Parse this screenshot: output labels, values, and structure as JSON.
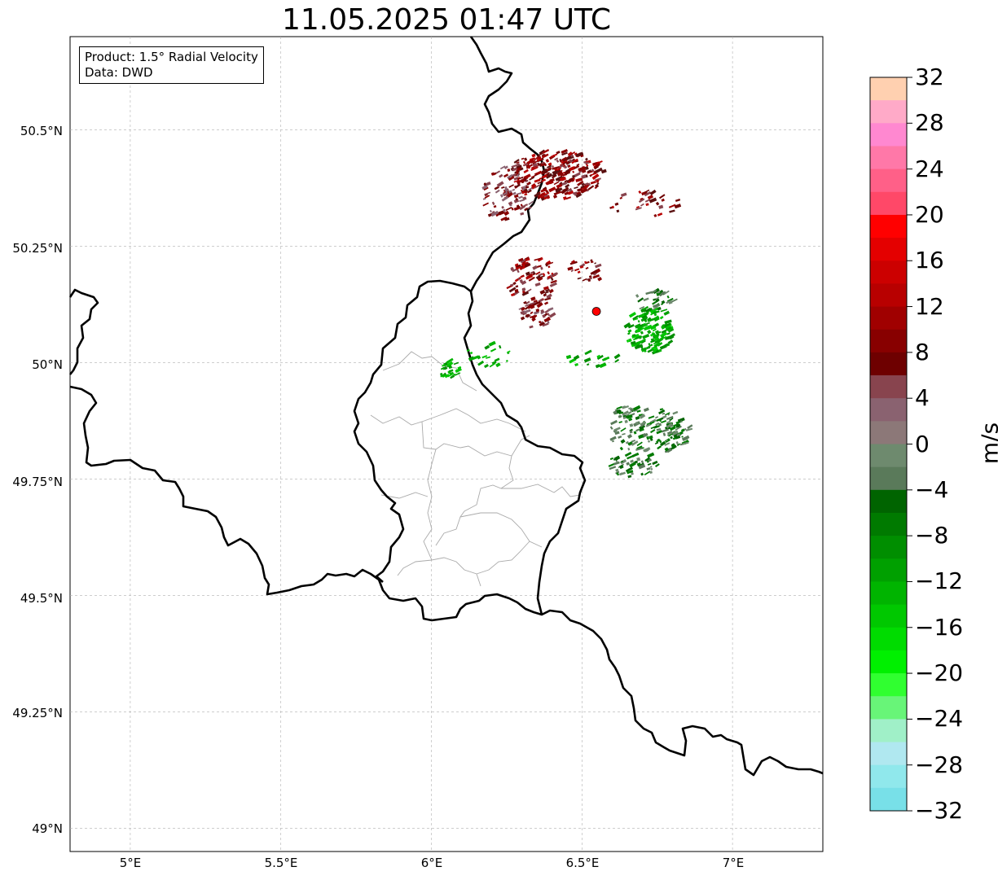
{
  "title": "11.05.2025 01:47 UTC",
  "info": {
    "product": "Product: 1.5° Radial Velocity",
    "data": "Data: DWD"
  },
  "map": {
    "lon_range": [
      4.8,
      7.3
    ],
    "lat_range": [
      48.95,
      50.7
    ],
    "lon_ticks": [
      "5°E",
      "5.5°E",
      "6°E",
      "6.5°E",
      "7°E"
    ],
    "lat_ticks": [
      "50.5°N",
      "50.25°N",
      "50°N",
      "49.75°N",
      "49.5°N",
      "49.25°N",
      "49°N"
    ],
    "grid": true,
    "radar_site": {
      "lon": 6.548,
      "lat": 50.11,
      "color": "#ff0000"
    }
  },
  "colorbar": {
    "label": "m/s",
    "min": -32,
    "max": 32,
    "ticks": [
      "32",
      "28",
      "24",
      "20",
      "16",
      "12",
      "8",
      "4",
      "0",
      "−4",
      "−8",
      "−12",
      "−16",
      "−20",
      "−24",
      "−28",
      "−32"
    ],
    "colors_top_to_bottom": [
      "#ffd0b0",
      "#ffaac8",
      "#ff88d0",
      "#ff78a8",
      "#ff6088",
      "#ff4868",
      "#ff0000",
      "#e40000",
      "#cc0000",
      "#b80000",
      "#a00000",
      "#880000",
      "#6e0000",
      "#88444e",
      "#8a6270",
      "#8c7878",
      "#6e8a6e",
      "#5a7a5a",
      "#006400",
      "#007a00",
      "#008e00",
      "#00a000",
      "#00b400",
      "#00c800",
      "#00dc00",
      "#00f000",
      "#30ff30",
      "#68f578",
      "#a0f0c8",
      "#b0e8f0",
      "#90e8ec",
      "#78e0e8"
    ]
  }
}
